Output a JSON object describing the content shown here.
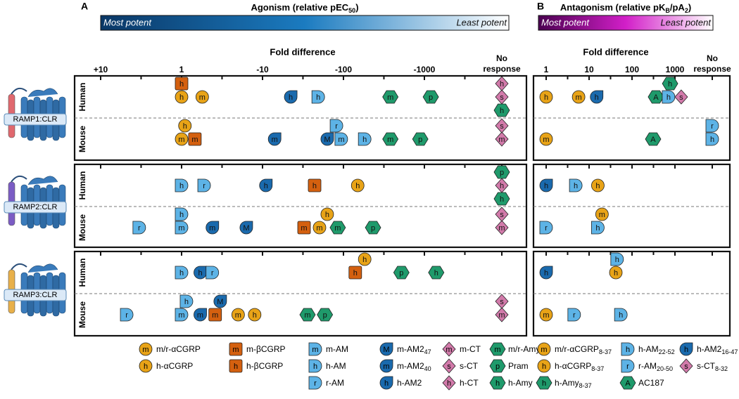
{
  "receptors": [
    {
      "name": "RAMP1:CLR",
      "ramp_color": "#e0686e",
      "species": [
        "Human",
        "Mouse"
      ]
    },
    {
      "name": "RAMP2:CLR",
      "ramp_color": "#7b5cc4",
      "species": [
        "Human",
        "Mouse"
      ]
    },
    {
      "name": "RAMP3:CLR",
      "ramp_color": "#e8b04a",
      "species": [
        "Human",
        "Mouse"
      ]
    }
  ],
  "panel_a": {
    "letter": "A",
    "title": {
      "text": "Agonism (relative pEC",
      "sub": "50",
      "end": ")"
    },
    "most": "Most potent",
    "least": "Least potent",
    "gradient": [
      "#0a3766",
      "#1b7bc0",
      "#ffffff"
    ],
    "axis_label": "Fold difference",
    "scale": "log",
    "ticks": [
      {
        "value": 0.1,
        "label": "+10"
      },
      1,
      {
        "value": 10,
        "label": "-10"
      },
      {
        "value": 100,
        "label": "-100"
      },
      {
        "value": 1000,
        "label": "-1000"
      }
    ],
    "minor_ticks": [
      0.316,
      3.16,
      31.6,
      316,
      3162
    ],
    "no_response": "No response",
    "legend": [
      {
        "label": "m/r-αCGRP",
        "letter": "m",
        "shape": "circle",
        "color": "#e8a317",
        "results": [
          {
            "receptor": "RAMP1:CLR",
            "species": "Human",
            "fold": 1.8
          },
          {
            "receptor": "RAMP1:CLR",
            "species": "Mouse",
            "fold": 1
          },
          {
            "receptor": "RAMP2:CLR",
            "species": "Mouse",
            "fold": 50.6
          },
          {
            "receptor": "RAMP3:CLR",
            "species": "Mouse",
            "fold": 5.0
          }
        ]
      },
      {
        "label": "h-αCGRP",
        "letter": "h",
        "shape": "circle",
        "color": "#e8a317",
        "results": [
          {
            "receptor": "RAMP1:CLR",
            "species": "Human",
            "fold": 1
          },
          {
            "receptor": "RAMP1:CLR",
            "species": "Mouse",
            "fold": 1.1
          },
          {
            "receptor": "RAMP2:CLR",
            "species": "Human",
            "fold": 150
          },
          {
            "receptor": "RAMP2:CLR",
            "species": "Mouse",
            "fold": 63
          },
          {
            "receptor": "RAMP3:CLR",
            "species": "Human",
            "fold": 183
          },
          {
            "receptor": "RAMP3:CLR",
            "species": "Mouse",
            "fold": 8.0
          }
        ]
      },
      {
        "label": "m-βCGRP",
        "letter": "m",
        "shape": "square",
        "color": "#d4600f",
        "results": [
          {
            "receptor": "RAMP1:CLR",
            "species": "Mouse",
            "fold": 1.46
          },
          {
            "receptor": "RAMP2:CLR",
            "species": "Mouse",
            "fold": 32.6
          },
          {
            "receptor": "RAMP3:CLR",
            "species": "Mouse",
            "fold": 2.6
          }
        ]
      },
      {
        "label": "h-βCGRP",
        "letter": "h",
        "shape": "square",
        "color": "#d4600f",
        "results": [
          {
            "receptor": "RAMP1:CLR",
            "species": "Human",
            "fold": 1
          },
          {
            "receptor": "RAMP2:CLR",
            "species": "Human",
            "fold": 44
          },
          {
            "receptor": "RAMP3:CLR",
            "species": "Human",
            "fold": 140
          }
        ]
      },
      {
        "label": "m-AM",
        "letter": "m",
        "shape": "dshape",
        "color": "#5db3e6",
        "results": [
          {
            "receptor": "RAMP1:CLR",
            "species": "Mouse",
            "fold": 94
          },
          {
            "receptor": "RAMP2:CLR",
            "species": "Mouse",
            "fold": 1
          },
          {
            "receptor": "RAMP3:CLR",
            "species": "Mouse",
            "fold": 1
          }
        ]
      },
      {
        "label": "h-AM",
        "letter": "h",
        "shape": "dshape",
        "color": "#5db3e6",
        "results": [
          {
            "receptor": "RAMP1:CLR",
            "species": "Human",
            "fold": 48.8
          },
          {
            "receptor": "RAMP1:CLR",
            "species": "Mouse",
            "fold": 183
          },
          {
            "receptor": "RAMP2:CLR",
            "species": "Human",
            "fold": 1
          },
          {
            "receptor": "RAMP2:CLR",
            "species": "Mouse",
            "fold": 1
          },
          {
            "receptor": "RAMP3:CLR",
            "species": "Human",
            "fold": 1
          },
          {
            "receptor": "RAMP3:CLR",
            "species": "Mouse",
            "fold": 1.15
          }
        ]
      },
      {
        "label": "r-AM",
        "letter": "r",
        "shape": "dshape",
        "color": "#5db3e6",
        "results": [
          {
            "receptor": "RAMP1:CLR",
            "species": "Mouse",
            "fold": 82
          },
          {
            "receptor": "RAMP2:CLR",
            "species": "Human",
            "fold": 1.9
          },
          {
            "receptor": "RAMP2:CLR",
            "species": "Mouse",
            "fold": 0.3
          },
          {
            "receptor": "RAMP3:CLR",
            "species": "Human",
            "fold": 2.4
          },
          {
            "receptor": "RAMP3:CLR",
            "species": "Mouse",
            "fold": 0.21
          }
        ]
      },
      {
        "label": "m-AM2",
        "sub": "47",
        "letter": "M",
        "shape": "drop",
        "color": "#1a6aad",
        "results": [
          {
            "receptor": "RAMP1:CLR",
            "species": "Mouse",
            "fold": 63
          },
          {
            "receptor": "RAMP2:CLR",
            "species": "Mouse",
            "fold": 6.3
          },
          {
            "receptor": "RAMP3:CLR",
            "species": "Mouse",
            "fold": 3.0
          }
        ]
      },
      {
        "label": "m-AM2",
        "sub": "40",
        "letter": "m",
        "shape": "drop",
        "color": "#1a6aad",
        "results": [
          {
            "receptor": "RAMP1:CLR",
            "species": "Mouse",
            "fold": 14.1
          },
          {
            "receptor": "RAMP2:CLR",
            "species": "Mouse",
            "fold": 2.4
          },
          {
            "receptor": "RAMP3:CLR",
            "species": "Mouse",
            "fold": 1.7
          }
        ]
      },
      {
        "label": "h-AM2",
        "letter": "h",
        "shape": "drop",
        "color": "#1a6aad",
        "results": [
          {
            "receptor": "RAMP1:CLR",
            "species": "Human",
            "fold": 22.3
          },
          {
            "receptor": "RAMP2:CLR",
            "species": "Human",
            "fold": 11
          },
          {
            "receptor": "RAMP3:CLR",
            "species": "Human",
            "fold": 1.7
          }
        ]
      },
      {
        "label": "m-CT",
        "letter": "m",
        "shape": "diamond",
        "color": "#d27aaa",
        "results": [
          {
            "receptor": "RAMP1:CLR",
            "species": "Mouse",
            "fold": null
          },
          {
            "receptor": "RAMP2:CLR",
            "species": "Mouse",
            "fold": null
          },
          {
            "receptor": "RAMP3:CLR",
            "species": "Mouse",
            "fold": null
          }
        ]
      },
      {
        "label": "s-CT",
        "letter": "s",
        "shape": "diamond",
        "color": "#d27aaa",
        "results": [
          {
            "receptor": "RAMP1:CLR",
            "species": "Human",
            "fold": null
          },
          {
            "receptor": "RAMP1:CLR",
            "species": "Mouse",
            "fold": null
          },
          {
            "receptor": "RAMP2:CLR",
            "species": "Mouse",
            "fold": null
          },
          {
            "receptor": "RAMP3:CLR",
            "species": "Mouse",
            "fold": null
          }
        ]
      },
      {
        "label": "h-CT",
        "letter": "h",
        "shape": "diamond",
        "color": "#d27aaa",
        "results": [
          {
            "receptor": "RAMP1:CLR",
            "species": "Human",
            "fold": null
          },
          {
            "receptor": "RAMP2:CLR",
            "species": "Human",
            "fold": null
          }
        ]
      },
      {
        "label": "m/r-Amy",
        "letter": "m",
        "shape": "hexagon",
        "color": "#1f9a6b",
        "results": [
          {
            "receptor": "RAMP1:CLR",
            "species": "Human",
            "fold": 380
          },
          {
            "receptor": "RAMP1:CLR",
            "species": "Mouse",
            "fold": 380
          },
          {
            "receptor": "RAMP2:CLR",
            "species": "Mouse",
            "fold": 85
          },
          {
            "receptor": "RAMP3:CLR",
            "species": "Mouse",
            "fold": 36
          }
        ]
      },
      {
        "label": "Pram",
        "letter": "p",
        "shape": "hexagon",
        "color": "#1f9a6b",
        "results": [
          {
            "receptor": "RAMP1:CLR",
            "species": "Human",
            "fold": 1200
          },
          {
            "receptor": "RAMP1:CLR",
            "species": "Mouse",
            "fold": 890
          },
          {
            "receptor": "RAMP2:CLR",
            "species": "Human",
            "fold": null
          },
          {
            "receptor": "RAMP2:CLR",
            "species": "Mouse",
            "fold": 232
          },
          {
            "receptor": "RAMP3:CLR",
            "species": "Human",
            "fold": 520
          },
          {
            "receptor": "RAMP3:CLR",
            "species": "Mouse",
            "fold": 59
          }
        ]
      },
      {
        "label": "h-Amy",
        "letter": "h",
        "shape": "hexagon",
        "color": "#1f9a6b",
        "results": [
          {
            "receptor": "RAMP1:CLR",
            "species": "Human",
            "fold": null
          },
          {
            "receptor": "RAMP2:CLR",
            "species": "Human",
            "fold": null
          },
          {
            "receptor": "RAMP3:CLR",
            "species": "Human",
            "fold": 1400
          }
        ]
      }
    ]
  },
  "panel_b": {
    "letter": "B",
    "title": {
      "text": "Antagonism (relative pK",
      "sub": "B",
      "end": "/pA",
      "sub2": "2",
      "end2": ")"
    },
    "most": "Most potent",
    "least": "Least potent",
    "gradient": [
      "#4a0050",
      "#d21fc8",
      "#ffffff"
    ],
    "axis_label": "Fold difference",
    "scale": "log",
    "ticks": [
      1,
      10,
      100,
      1000
    ],
    "minor_ticks": [
      3.16,
      31.6,
      316
    ],
    "no_response": "No response",
    "legend": [
      {
        "label": "m/r-αCGRP",
        "sub": "8-37",
        "letter": "m",
        "shape": "circle",
        "color": "#e8a317",
        "results": [
          {
            "receptor": "RAMP1:CLR",
            "species": "Human",
            "fold": 5.7
          },
          {
            "receptor": "RAMP1:CLR",
            "species": "Mouse",
            "fold": 1
          },
          {
            "receptor": "RAMP2:CLR",
            "species": "Mouse",
            "fold": 20
          },
          {
            "receptor": "RAMP3:CLR",
            "species": "Mouse",
            "fold": 1
          }
        ]
      },
      {
        "label": "h-αCGRP",
        "sub": "8-37",
        "letter": "h",
        "shape": "circle",
        "color": "#e8a317",
        "results": [
          {
            "receptor": "RAMP1:CLR",
            "species": "Human",
            "fold": 1
          },
          {
            "receptor": "RAMP2:CLR",
            "species": "Human",
            "fold": 16
          },
          {
            "receptor": "RAMP3:CLR",
            "species": "Human",
            "fold": 42
          }
        ]
      },
      {
        "label": "h-Amy",
        "sub": "8-37",
        "letter": "h",
        "shape": "hexagon",
        "color": "#1f9a6b",
        "results": [
          {
            "receptor": "RAMP1:CLR",
            "species": "Human",
            "fold": 770
          }
        ]
      },
      {
        "label": "h-AM",
        "sub": "22-52",
        "letter": "h",
        "shape": "dshape",
        "color": "#5db3e6",
        "results": [
          {
            "receptor": "RAMP1:CLR",
            "species": "Human",
            "fold": 710
          },
          {
            "receptor": "RAMP1:CLR",
            "species": "Mouse",
            "fold": null
          },
          {
            "receptor": "RAMP2:CLR",
            "species": "Human",
            "fold": 4.9
          },
          {
            "receptor": "RAMP2:CLR",
            "species": "Mouse",
            "fold": 16
          },
          {
            "receptor": "RAMP3:CLR",
            "species": "Human",
            "fold": 45
          },
          {
            "receptor": "RAMP3:CLR",
            "species": "Mouse",
            "fold": 55
          }
        ]
      },
      {
        "label": "r-AM",
        "sub": "20-50",
        "letter": "r",
        "shape": "dshape",
        "color": "#5db3e6",
        "results": [
          {
            "receptor": "RAMP1:CLR",
            "species": "Mouse",
            "fold": null
          },
          {
            "receptor": "RAMP2:CLR",
            "species": "Mouse",
            "fold": 1
          },
          {
            "receptor": "RAMP3:CLR",
            "species": "Mouse",
            "fold": 4.5
          }
        ]
      },
      {
        "label": "AC187",
        "letter": "A",
        "shape": "hexagon",
        "color": "#1f9a6b",
        "results": [
          {
            "receptor": "RAMP1:CLR",
            "species": "Human",
            "fold": 360
          },
          {
            "receptor": "RAMP1:CLR",
            "species": "Mouse",
            "fold": 310
          }
        ]
      },
      {
        "label": "h-AM2",
        "sub": "16-47",
        "letter": "h",
        "shape": "drop",
        "color": "#1a6aad",
        "results": [
          {
            "receptor": "RAMP1:CLR",
            "species": "Human",
            "fold": 15
          },
          {
            "receptor": "RAMP2:CLR",
            "species": "Human",
            "fold": 1
          },
          {
            "receptor": "RAMP3:CLR",
            "species": "Human",
            "fold": 1
          }
        ]
      },
      {
        "label": "s-CT",
        "sub": "8-32",
        "letter": "s",
        "shape": "diamond",
        "color": "#d27aaa",
        "results": [
          {
            "receptor": "RAMP1:CLR",
            "species": "Human",
            "fold": 1400
          }
        ]
      }
    ]
  }
}
